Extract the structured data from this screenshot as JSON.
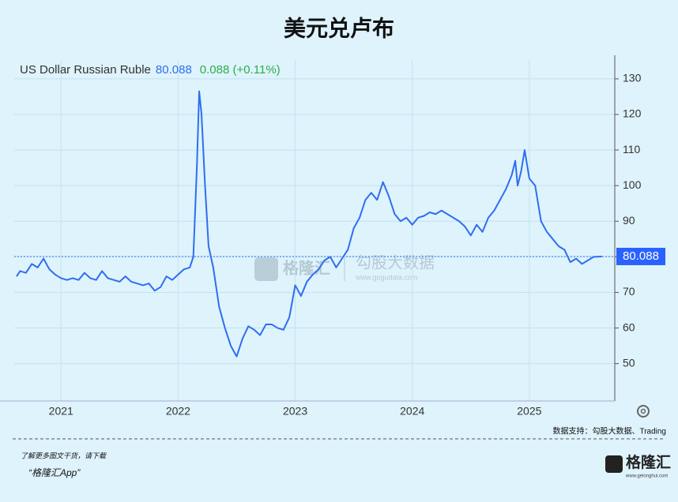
{
  "title": "美元兑卢布",
  "chart_data": {
    "type": "line",
    "change": "0.088 (+0.11%)",
    "x": [
      2020.62,
      2020.65,
      2020.7,
      2020.75,
      2020.8,
      2020.85,
      2020.9,
      2020.95,
      2021.0,
      2021.05,
      2021.1,
      2021.15,
      2021.2,
      2021.25,
      2021.3,
      2021.35,
      2021.4,
      2021.45,
      2021.5,
      2021.55,
      2021.6,
      2021.65,
      2021.7,
      2021.75,
      2021.8,
      2021.85,
      2021.9,
      2021.95,
      2022.0,
      2022.05,
      2022.1,
      2022.13,
      2022.16,
      2022.18,
      2022.2,
      2022.23,
      2022.26,
      2022.3,
      2022.35,
      2022.4,
      2022.45,
      2022.5,
      2022.55,
      2022.6,
      2022.65,
      2022.7,
      2022.75,
      2022.8,
      2022.85,
      2022.9,
      2022.95,
      2023.0,
      2023.05,
      2023.1,
      2023.15,
      2023.2,
      2023.25,
      2023.3,
      2023.35,
      2023.4,
      2023.45,
      2023.5,
      2023.55,
      2023.6,
      2023.65,
      2023.7,
      2023.75,
      2023.8,
      2023.85,
      2023.9,
      2023.95,
      2024.0,
      2024.05,
      2024.1,
      2024.15,
      2024.2,
      2024.25,
      2024.3,
      2024.35,
      2024.4,
      2024.45,
      2024.5,
      2024.55,
      2024.6,
      2024.65,
      2024.7,
      2024.75,
      2024.8,
      2024.85,
      2024.88,
      2024.9,
      2024.93,
      2024.96,
      2025.0,
      2025.05,
      2025.1,
      2025.15,
      2025.2,
      2025.25,
      2025.3,
      2025.35,
      2025.4,
      2025.45,
      2025.5,
      2025.55,
      2025.62
    ],
    "series": [
      {
        "name": "US Dollar Russian Ruble",
        "color": "#2f6ef0",
        "values": [
          74.5,
          76,
          75.5,
          78,
          77,
          79.5,
          76.5,
          75,
          74,
          73.5,
          74,
          73.5,
          75.5,
          74,
          73.5,
          76,
          74,
          73.5,
          73,
          74.5,
          73,
          72.5,
          72,
          72.5,
          70.5,
          71.5,
          74.5,
          73.5,
          75,
          76.5,
          77,
          80,
          105,
          126.5,
          120,
          100,
          83,
          77,
          66,
          60,
          55,
          52,
          57,
          60.5,
          59.5,
          58,
          61,
          61,
          60,
          59.5,
          63,
          72,
          69,
          73,
          75,
          76.5,
          79,
          80,
          77,
          79.5,
          82,
          88,
          91,
          96,
          98,
          96,
          101,
          97,
          92,
          90,
          91,
          89,
          91,
          91.5,
          92.5,
          92,
          93,
          92,
          91,
          90,
          88.5,
          86,
          89,
          87,
          91,
          93,
          96,
          99,
          103,
          107,
          100,
          104,
          110,
          102,
          100,
          90,
          87,
          85,
          83,
          82,
          78.5,
          79.5,
          78,
          79,
          80,
          80.088
        ]
      }
    ],
    "xlim": [
      2020.6,
      2025.73
    ],
    "xticks": [
      2021,
      2022,
      2023,
      2024,
      2025
    ],
    "ylim": [
      39.5,
      135.3
    ],
    "yticks": [
      50,
      60,
      70,
      80,
      90,
      100,
      110,
      120,
      130
    ],
    "grid": true
  },
  "watermark": {
    "brand": "格隆汇",
    "name": "勾股大数据",
    "url": "www.gogudata.com"
  },
  "footer": {
    "source": "数据支持：勾股大数据、Trading",
    "promo": "了解更多图文干货，请下载",
    "app": "“格隆汇App”",
    "logo": "格隆汇",
    "logo_url": "www.gelonghui.com"
  }
}
